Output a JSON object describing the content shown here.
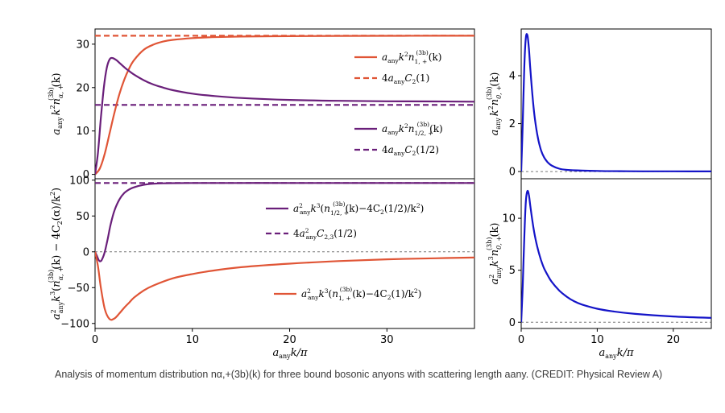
{
  "caption": "Analysis of momentum distribution nα,+(3b)(k) for three bound bosonic anyons with scattering length aany. (CREDIT: Physical Review A)",
  "colors": {
    "red": "#e05536",
    "purple": "#6a1f7a",
    "blue": "#1414c8",
    "dashed_ref": "#777777"
  },
  "chart_data": [
    {
      "id": "top-left",
      "type": "line",
      "xlim": [
        0,
        39
      ],
      "ylim": [
        -1,
        33.5
      ],
      "xticks": [],
      "yticks": [
        0,
        10,
        20,
        30
      ],
      "ylabel": "aany k² nα,+(3b)(k)",
      "xlabel": "",
      "series": [
        {
          "name": "aany k² n1,+(3b)(k)",
          "color": "red",
          "style": "solid",
          "x": [
            0,
            0.5,
            1,
            1.5,
            2,
            2.5,
            3,
            3.5,
            4,
            5,
            6,
            7,
            8,
            10,
            12,
            15,
            20,
            25,
            30,
            35,
            39
          ],
          "y": [
            0,
            1.4,
            4.8,
            9.5,
            14.3,
            18.5,
            21.8,
            24.4,
            26.3,
            28.7,
            29.9,
            30.6,
            31.0,
            31.4,
            31.6,
            31.75,
            31.85,
            31.9,
            31.92,
            31.94,
            31.95
          ]
        },
        {
          "name": "4aany C2(1)",
          "color": "red",
          "style": "dashed",
          "x": [
            0,
            39
          ],
          "y": [
            31.95,
            31.95
          ]
        },
        {
          "name": "aany k² n1/2,+(3b)(k)",
          "color": "purple",
          "style": "solid",
          "x": [
            0,
            0.3,
            0.6,
            0.9,
            1.2,
            1.5,
            1.8,
            2.2,
            2.6,
            3,
            3.5,
            4,
            5,
            6,
            7,
            8,
            10,
            12,
            15,
            20,
            25,
            30,
            35,
            39
          ],
          "y": [
            0,
            5,
            13,
            20,
            24.5,
            26.5,
            26.8,
            26.3,
            25.5,
            24.7,
            23.8,
            23.0,
            21.7,
            20.7,
            20.0,
            19.4,
            18.6,
            18.1,
            17.6,
            17.15,
            16.95,
            16.85,
            16.8,
            16.75
          ]
        },
        {
          "name": "4aany C2(1/2)",
          "color": "purple",
          "style": "dashed",
          "x": [
            0,
            39
          ],
          "y": [
            16.0,
            16.0
          ]
        }
      ],
      "legend": [
        "aany k² n1,+(3b)(k)",
        "4aany C2(1)",
        "aany k² n1/2,+(3b)(k)",
        "4aany C2(1/2)"
      ]
    },
    {
      "id": "bottom-left",
      "type": "line",
      "xlim": [
        0,
        39
      ],
      "ylim": [
        -107,
        102
      ],
      "xticks": [
        0,
        10,
        20,
        30
      ],
      "yticks": [
        -100,
        -50,
        0,
        50,
        100
      ],
      "ylabel": "a²any k³ (nα,+(3b)(k) − 4C2(α)/k²)",
      "xlabel": "aany k/π",
      "series": [
        {
          "name": "a²any k³(n1/2,+(3b)(k)−4C2(1/2)/k²)",
          "color": "purple",
          "style": "solid",
          "x": [
            0,
            0.2,
            0.4,
            0.6,
            0.8,
            1,
            1.3,
            1.6,
            2,
            2.5,
            3,
            3.5,
            4,
            5,
            6,
            7,
            8,
            10,
            15,
            20,
            30,
            39
          ],
          "y": [
            0,
            -6,
            -12,
            -13,
            -8,
            0,
            18,
            38,
            58,
            73,
            82,
            87,
            90,
            93.5,
            95,
            95.6,
            95.8,
            96,
            96.1,
            96.1,
            96.1,
            96.1
          ]
        },
        {
          "name": "4a²any C2,3(1/2)",
          "color": "purple",
          "style": "dashed",
          "x": [
            0,
            39
          ],
          "y": [
            96.1,
            96.1
          ]
        },
        {
          "name": "a²any k³(n1,+(3b)(k)−4C2(1)/k²)",
          "color": "red",
          "style": "solid",
          "x": [
            0,
            0.3,
            0.6,
            1,
            1.5,
            2,
            2.5,
            3,
            3.5,
            4,
            5,
            6,
            8,
            10,
            12,
            15,
            20,
            25,
            30,
            35,
            39
          ],
          "y": [
            0,
            -20,
            -50,
            -80,
            -94,
            -93,
            -86,
            -78,
            -71,
            -64,
            -54,
            -47,
            -37,
            -31,
            -26.5,
            -21.5,
            -16.5,
            -13,
            -10.5,
            -9,
            -8
          ]
        },
        {
          "name": "zero-ref",
          "color": "dashed_ref",
          "style": "dashed-thin",
          "x": [
            0,
            39
          ],
          "y": [
            0,
            0
          ]
        }
      ],
      "legend": [
        "a²any k³(n1/2,+(3b)(k)−4C2(1/2)/k²)",
        "4a²any C2,3(1/2)",
        "a²any k³(n1,+(3b)(k)−4C2(1)/k²)"
      ]
    },
    {
      "id": "top-right",
      "type": "line",
      "xlim": [
        0,
        25
      ],
      "ylim": [
        -0.3,
        5.95
      ],
      "xticks": [],
      "yticks": [
        0,
        2,
        4
      ],
      "ylabel": "aany k² n0,+(3b)(k)",
      "xlabel": "",
      "series": [
        {
          "name": "aany k² n0,+(3b)(k)",
          "color": "blue",
          "style": "solid",
          "x": [
            0,
            0.2,
            0.4,
            0.6,
            0.8,
            1,
            1.2,
            1.5,
            1.8,
            2.2,
            2.6,
            3,
            3.5,
            4,
            5,
            6,
            8,
            10,
            13,
            16,
            20,
            25
          ],
          "y": [
            0,
            2.0,
            4.3,
            5.55,
            5.7,
            5.2,
            4.3,
            3.1,
            2.2,
            1.4,
            0.9,
            0.6,
            0.38,
            0.25,
            0.12,
            0.07,
            0.04,
            0.025,
            0.015,
            0.01,
            0.008,
            0.005
          ]
        },
        {
          "name": "zero-ref",
          "color": "dashed_ref",
          "style": "dashed-thin",
          "x": [
            0,
            25
          ],
          "y": [
            0,
            0
          ]
        }
      ]
    },
    {
      "id": "bottom-right",
      "type": "line",
      "xlim": [
        0,
        25
      ],
      "ylim": [
        -0.6,
        13.8
      ],
      "xticks": [
        0,
        10,
        20
      ],
      "yticks": [
        0,
        5,
        10
      ],
      "ylabel": "a²any k³ n0,+(3b)(k)",
      "xlabel": "aany k/π",
      "series": [
        {
          "name": "a²any k³ n0,+(3b)(k)",
          "color": "blue",
          "style": "solid",
          "x": [
            0,
            0.2,
            0.4,
            0.6,
            0.8,
            1,
            1.2,
            1.5,
            1.8,
            2.2,
            2.6,
            3,
            3.5,
            4,
            5,
            6,
            7,
            8,
            10,
            12,
            15,
            20,
            25
          ],
          "y": [
            0,
            3.5,
            8.0,
            11.5,
            12.6,
            12.3,
            11.2,
            9.6,
            8.3,
            7.0,
            6.0,
            5.2,
            4.5,
            3.9,
            3.05,
            2.45,
            2.0,
            1.7,
            1.3,
            1.05,
            0.8,
            0.55,
            0.42
          ]
        },
        {
          "name": "zero-ref",
          "color": "dashed_ref",
          "style": "dashed-thin",
          "x": [
            0,
            25
          ],
          "y": [
            0,
            0
          ]
        }
      ]
    }
  ]
}
